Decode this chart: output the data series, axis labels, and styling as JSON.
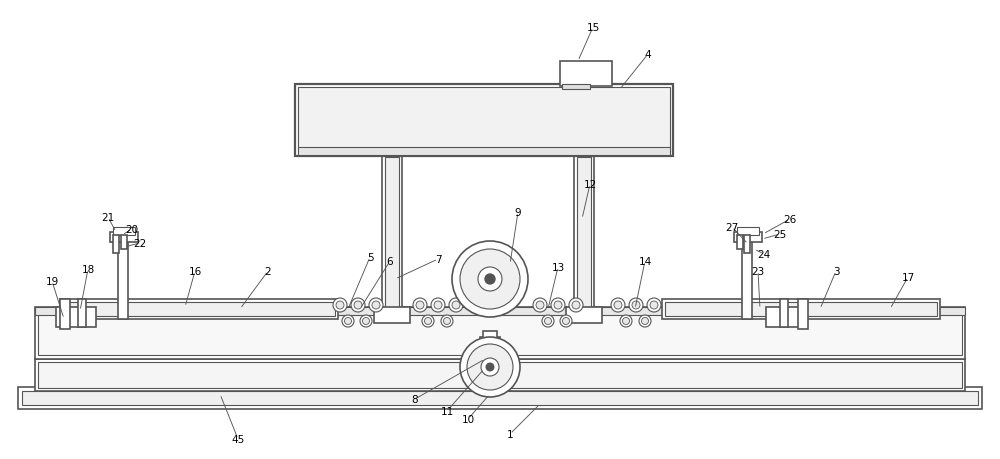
{
  "bg_color": "#ffffff",
  "lc": "#555555",
  "lc_thin": "#777777",
  "figsize": [
    10.0,
    4.6
  ],
  "dpi": 100
}
